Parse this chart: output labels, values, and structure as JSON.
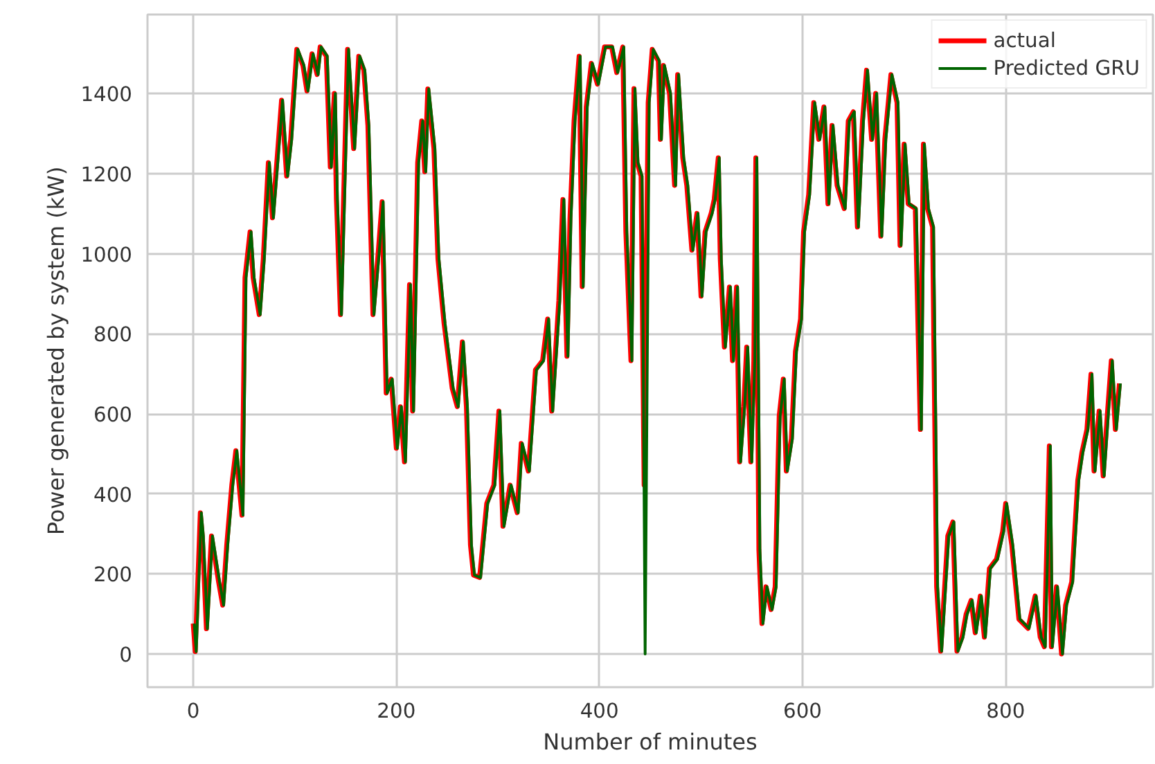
{
  "chart_data": {
    "type": "line",
    "xlabel": "Number of minutes",
    "ylabel": "Power generated by system (kW)",
    "xlim": [
      -45,
      945
    ],
    "ylim": [
      -83,
      1598
    ],
    "xticks": [
      0,
      200,
      400,
      600,
      800
    ],
    "yticks": [
      0,
      200,
      400,
      600,
      800,
      1000,
      1200,
      1400
    ],
    "grid": true,
    "legend": "top right",
    "marker": "none",
    "line_style": "solid",
    "x": [
      0,
      2,
      6,
      7,
      9,
      13,
      18,
      25,
      29,
      33,
      38,
      42,
      48,
      51,
      56,
      59,
      65,
      69,
      74,
      78,
      83,
      87,
      92,
      96,
      102,
      108,
      112,
      117,
      122,
      125,
      131,
      135,
      139,
      141,
      145,
      152,
      158,
      163,
      168,
      172,
      177,
      182,
      186,
      190,
      195,
      200,
      204,
      208,
      213,
      216,
      221,
      225,
      228,
      231,
      237,
      241,
      247,
      255,
      260,
      265,
      269,
      273,
      276,
      282,
      289,
      296,
      301,
      305,
      312,
      319,
      323,
      330,
      337,
      344,
      349,
      353,
      360,
      364,
      368,
      371,
      375,
      380,
      383,
      387,
      392,
      398,
      405,
      412,
      417,
      423,
      426,
      431,
      434,
      437,
      441,
      444,
      448,
      452,
      458,
      460,
      463,
      469,
      474,
      477,
      482,
      486,
      491,
      496,
      500,
      504,
      510,
      513,
      517,
      519,
      523,
      528,
      531,
      535,
      538,
      542,
      545,
      549,
      552,
      554,
      557,
      560,
      564,
      569,
      573,
      577,
      581,
      584,
      589,
      593,
      598,
      601,
      606,
      611,
      616,
      621,
      625,
      629,
      634,
      641,
      645,
      650,
      654,
      659,
      663,
      668,
      672,
      677,
      681,
      687,
      693,
      696,
      700,
      704,
      711,
      716,
      719,
      723,
      728,
      732,
      736,
      743,
      748,
      752,
      757,
      761,
      766,
      770,
      775,
      779,
      784,
      791,
      797,
      800,
      806,
      813,
      822,
      829,
      834,
      838,
      843,
      845,
      850,
      855,
      859,
      865,
      871,
      875,
      880,
      884,
      887,
      892,
      896,
      900,
      904,
      908,
      912
    ],
    "series": [
      {
        "name": "actual",
        "color": "#ff0000",
        "values": [
          76,
          6,
          283,
          353,
          295,
          63,
          295,
          180,
          122,
          272,
          422,
          508,
          347,
          940,
          1055,
          940,
          848,
          987,
          1228,
          1090,
          1251,
          1384,
          1194,
          1286,
          1511,
          1471,
          1407,
          1500,
          1448,
          1517,
          1494,
          1217,
          1401,
          1136,
          848,
          1511,
          1263,
          1494,
          1459,
          1321,
          848,
          998,
          1130,
          652,
          687,
          514,
          618,
          480,
          923,
          607,
          1228,
          1332,
          1205,
          1412,
          1263,
          987,
          826,
          664,
          618,
          780,
          618,
          272,
          197,
          191,
          376,
          422,
          607,
          319,
          422,
          353,
          526,
          457,
          710,
          733,
          837,
          607,
          883,
          1136,
          744,
          1090,
          1332,
          1494,
          918,
          1367,
          1476,
          1424,
          1517,
          1517,
          1453,
          1517,
          1055,
          733,
          1413,
          1228,
          1194,
          422,
          1378,
          1511,
          1482,
          1286,
          1471,
          1401,
          1171,
          1448,
          1240,
          1171,
          1009,
          1101,
          894,
          1055,
          1101,
          1136,
          1240,
          987,
          767,
          917,
          733,
          917,
          480,
          618,
          767,
          480,
          733,
          1240,
          260,
          76,
          168,
          111,
          168,
          595,
          687,
          457,
          538,
          756,
          837,
          1055,
          1148,
          1378,
          1286,
          1367,
          1125,
          1321,
          1171,
          1113,
          1332,
          1355,
          1067,
          1332,
          1459,
          1286,
          1401,
          1044,
          1286,
          1448,
          1378,
          1021,
          1274,
          1125,
          1113,
          561,
          1274,
          1113,
          1067,
          168,
          7,
          295,
          330,
          7,
          42,
          99,
          134,
          53,
          145,
          42,
          214,
          237,
          306,
          376,
          272,
          87,
          64,
          145,
          42,
          18,
          520,
          18,
          168,
          0,
          122,
          180,
          434,
          503,
          561,
          699,
          457,
          607,
          445,
          595,
          733,
          561,
          676
        ]
      },
      {
        "name": "Predicted GRU",
        "color": "#006400",
        "x": [
          1,
          3,
          7,
          8,
          10,
          14,
          19,
          26,
          30,
          34,
          39,
          43,
          49,
          52,
          57,
          60,
          66,
          70,
          75,
          79,
          84,
          88,
          93,
          97,
          103,
          109,
          113,
          118,
          123,
          126,
          132,
          136,
          140,
          142,
          146,
          153,
          159,
          164,
          169,
          173,
          178,
          183,
          187,
          191,
          196,
          201,
          205,
          209,
          214,
          217,
          222,
          226,
          229,
          232,
          238,
          242,
          248,
          256,
          261,
          266,
          270,
          274,
          277,
          283,
          290,
          297,
          302,
          306,
          313,
          320,
          324,
          331,
          338,
          345,
          350,
          354,
          361,
          365,
          369,
          372,
          376,
          381,
          384,
          388,
          393,
          399,
          406,
          413,
          418,
          424,
          427,
          432,
          435,
          438,
          442,
          445,
          449,
          453,
          459,
          461,
          464,
          470,
          475,
          478,
          483,
          487,
          492,
          497,
          501,
          505,
          511,
          514,
          518,
          520,
          524,
          529,
          532,
          536,
          539,
          543,
          546,
          550,
          553,
          555,
          558,
          561,
          565,
          570,
          574,
          578,
          582,
          585,
          590,
          594,
          599,
          602,
          607,
          612,
          617,
          622,
          626,
          630,
          635,
          642,
          646,
          651,
          655,
          660,
          664,
          669,
          673,
          678,
          682,
          688,
          694,
          697,
          701,
          705,
          712,
          717,
          720,
          724,
          729,
          733,
          737,
          744,
          749,
          753,
          758,
          762,
          767,
          771,
          776,
          780,
          785,
          792,
          798,
          801,
          807,
          814,
          823,
          830,
          835,
          839,
          844,
          846,
          851,
          856,
          860,
          866,
          872,
          876,
          881,
          885,
          888,
          893,
          897,
          901,
          905,
          909,
          913
        ],
        "values": [
          76,
          6,
          283,
          353,
          295,
          63,
          295,
          180,
          122,
          272,
          422,
          508,
          347,
          940,
          1055,
          940,
          848,
          987,
          1228,
          1090,
          1251,
          1384,
          1194,
          1286,
          1511,
          1471,
          1407,
          1500,
          1448,
          1517,
          1494,
          1217,
          1401,
          1136,
          848,
          1511,
          1263,
          1494,
          1459,
          1321,
          848,
          998,
          1130,
          652,
          687,
          514,
          618,
          480,
          923,
          607,
          1228,
          1332,
          1205,
          1412,
          1263,
          987,
          826,
          664,
          618,
          780,
          618,
          272,
          197,
          191,
          376,
          422,
          607,
          319,
          422,
          353,
          526,
          457,
          710,
          733,
          837,
          607,
          883,
          1136,
          744,
          1090,
          1332,
          1494,
          918,
          1367,
          1476,
          1424,
          1517,
          1517,
          1453,
          1517,
          1055,
          733,
          1413,
          1228,
          1194,
          0,
          1378,
          1511,
          1482,
          1286,
          1471,
          1401,
          1171,
          1448,
          1240,
          1171,
          1009,
          1101,
          894,
          1055,
          1101,
          1136,
          1240,
          987,
          767,
          917,
          733,
          917,
          480,
          618,
          767,
          480,
          733,
          1240,
          260,
          76,
          168,
          111,
          168,
          595,
          687,
          457,
          538,
          756,
          837,
          1055,
          1148,
          1378,
          1286,
          1367,
          1125,
          1321,
          1171,
          1113,
          1332,
          1355,
          1067,
          1332,
          1459,
          1286,
          1401,
          1044,
          1286,
          1448,
          1378,
          1021,
          1274,
          1125,
          1113,
          561,
          1274,
          1113,
          1067,
          168,
          7,
          295,
          330,
          7,
          42,
          99,
          134,
          53,
          145,
          42,
          214,
          237,
          306,
          376,
          272,
          87,
          64,
          145,
          42,
          18,
          520,
          18,
          168,
          0,
          122,
          180,
          434,
          503,
          561,
          699,
          457,
          607,
          445,
          595,
          733,
          561,
          676
        ]
      }
    ]
  }
}
